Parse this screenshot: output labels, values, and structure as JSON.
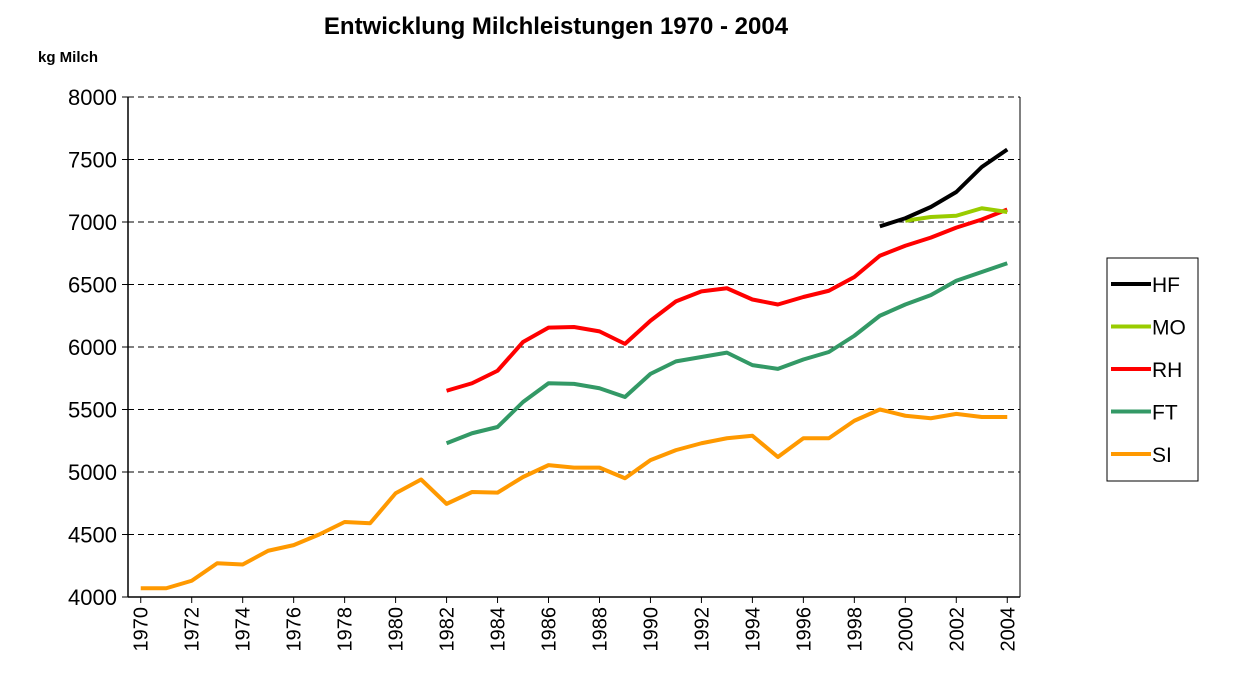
{
  "chart_data": {
    "type": "line",
    "title": "Entwicklung Milchleistungen 1970 - 2004",
    "y_label": "kg Milch",
    "x": [
      1970,
      1971,
      1972,
      1973,
      1974,
      1975,
      1976,
      1977,
      1978,
      1979,
      1980,
      1981,
      1982,
      1983,
      1984,
      1985,
      1986,
      1987,
      1988,
      1989,
      1990,
      1991,
      1992,
      1993,
      1994,
      1995,
      1996,
      1997,
      1998,
      1999,
      2000,
      2001,
      2002,
      2003,
      2004
    ],
    "xlim": [
      1969.5,
      2004.5
    ],
    "xticks": [
      1970,
      1972,
      1974,
      1976,
      1978,
      1980,
      1982,
      1984,
      1986,
      1988,
      1990,
      1992,
      1994,
      1996,
      1998,
      2000,
      2002,
      2004
    ],
    "ylim": [
      4000,
      8000
    ],
    "yticks": [
      4000,
      4500,
      5000,
      5500,
      6000,
      6500,
      7000,
      7500,
      8000
    ],
    "grid": true,
    "legend": "right",
    "series": [
      {
        "name": "HF",
        "color": "#000000",
        "values": [
          null,
          null,
          null,
          null,
          null,
          null,
          null,
          null,
          null,
          null,
          null,
          null,
          null,
          null,
          null,
          null,
          null,
          null,
          null,
          null,
          null,
          null,
          null,
          null,
          null,
          null,
          null,
          null,
          null,
          6965,
          7030,
          7120,
          7240,
          7440,
          7580
        ]
      },
      {
        "name": "MO",
        "color": "#99cc00",
        "values": [
          null,
          null,
          null,
          null,
          null,
          null,
          null,
          null,
          null,
          null,
          null,
          null,
          null,
          null,
          null,
          null,
          null,
          null,
          null,
          null,
          null,
          null,
          null,
          null,
          null,
          null,
          null,
          null,
          null,
          null,
          7010,
          7040,
          7050,
          7110,
          7080
        ]
      },
      {
        "name": "RH",
        "color": "#ff0000",
        "values": [
          null,
          null,
          null,
          null,
          null,
          null,
          null,
          null,
          null,
          null,
          null,
          null,
          5650,
          5710,
          5810,
          6040,
          6155,
          6160,
          6125,
          6025,
          6210,
          6365,
          6445,
          6470,
          6380,
          6340,
          6400,
          6450,
          6560,
          6730,
          6810,
          6875,
          6955,
          7020,
          7100
        ]
      },
      {
        "name": "FT",
        "color": "#339966",
        "values": [
          null,
          null,
          null,
          null,
          null,
          null,
          null,
          null,
          null,
          null,
          null,
          null,
          5230,
          5310,
          5360,
          5560,
          5710,
          5705,
          5670,
          5600,
          5785,
          5885,
          5920,
          5955,
          5855,
          5825,
          5900,
          5960,
          6090,
          6250,
          6340,
          6415,
          6530,
          6600,
          6670
        ]
      },
      {
        "name": "SI",
        "color": "#ff9900",
        "values": [
          4070,
          4070,
          4130,
          4270,
          4260,
          4370,
          4415,
          4500,
          4600,
          4590,
          4830,
          4940,
          4745,
          4840,
          4835,
          4960,
          5055,
          5035,
          5035,
          4950,
          5095,
          5175,
          5230,
          5270,
          5290,
          5120,
          5270,
          5270,
          5410,
          5500,
          5450,
          5430,
          5465,
          5440,
          5440
        ]
      }
    ]
  }
}
